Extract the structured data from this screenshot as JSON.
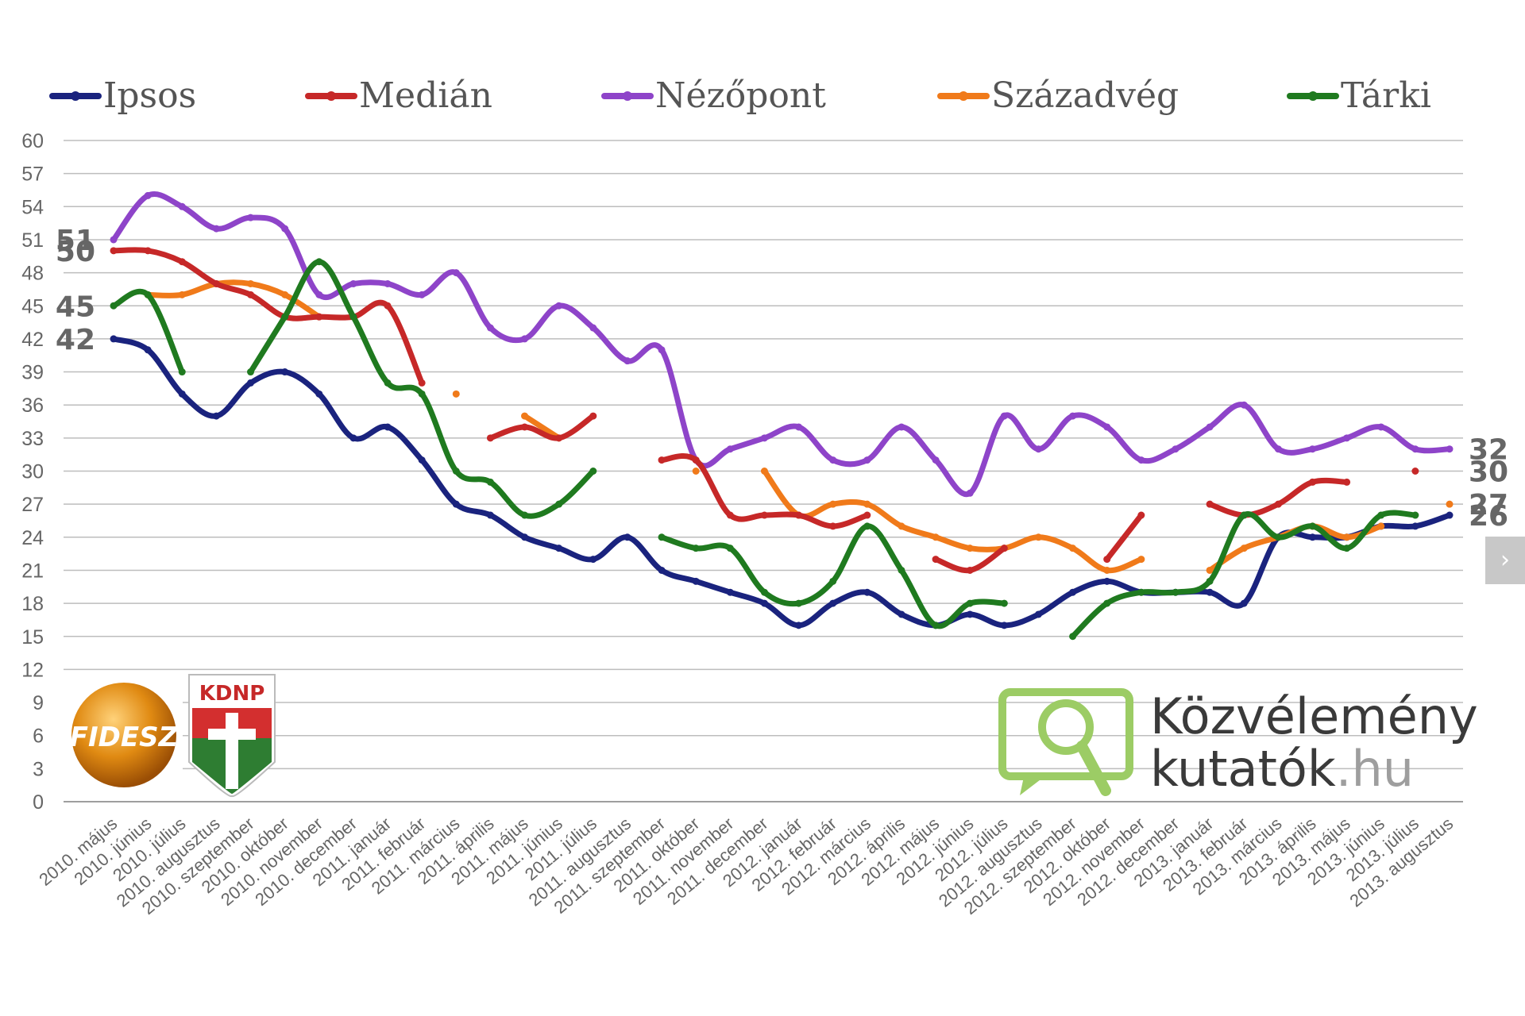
{
  "chart_data": {
    "type": "line",
    "title": "",
    "xlabel": "",
    "ylabel": "",
    "ylim": [
      0,
      60
    ],
    "yticks": [
      0,
      3,
      6,
      9,
      12,
      15,
      18,
      21,
      24,
      27,
      30,
      33,
      36,
      39,
      42,
      45,
      48,
      51,
      54,
      57,
      60
    ],
    "grid": "horizontal",
    "legend_position": "top",
    "categories": [
      "2010. május",
      "2010. június",
      "2010. július",
      "2010. augusztus",
      "2010. szeptember",
      "2010. október",
      "2010. november",
      "2010. december",
      "2011. január",
      "2011. február",
      "2011. március",
      "2011. április",
      "2011. május",
      "2011. június",
      "2011. július",
      "2011. augusztus",
      "2011. szeptember",
      "2011. október",
      "2011. november",
      "2011. december",
      "2012. január",
      "2012. február",
      "2012. március",
      "2012. április",
      "2012. május",
      "2012. június",
      "2012. július",
      "2012. augusztus",
      "2012. szeptember",
      "2012. október",
      "2012. november",
      "2012. december",
      "2013. január",
      "2013. február",
      "2013. március",
      "2013. április",
      "2013. május",
      "2013. június",
      "2013. július",
      "2013. augusztus"
    ],
    "series": [
      {
        "name": "Ipsos",
        "color": "#1a237e",
        "values": [
          42,
          41,
          37,
          35,
          38,
          39,
          37,
          33,
          34,
          31,
          27,
          26,
          24,
          23,
          22,
          24,
          21,
          20,
          19,
          18,
          16,
          18,
          19,
          17,
          16,
          17,
          16,
          17,
          19,
          20,
          19,
          19,
          19,
          18,
          24,
          24,
          24,
          25,
          25,
          26
        ]
      },
      {
        "name": "Medián",
        "color": "#c62828",
        "values": [
          50,
          50,
          49,
          47,
          46,
          44,
          44,
          44,
          45,
          38,
          null,
          33,
          34,
          33,
          35,
          null,
          31,
          31,
          26,
          26,
          26,
          25,
          26,
          null,
          22,
          21,
          23,
          null,
          null,
          22,
          26,
          null,
          27,
          26,
          27,
          29,
          29,
          null,
          30,
          null
        ]
      },
      {
        "name": "Nézőpont",
        "color": "#8e44c9",
        "values": [
          51,
          55,
          54,
          52,
          53,
          52,
          46,
          47,
          47,
          46,
          48,
          43,
          42,
          45,
          43,
          40,
          41,
          31,
          32,
          33,
          34,
          31,
          31,
          34,
          31,
          28,
          35,
          32,
          35,
          34,
          31,
          32,
          34,
          36,
          32,
          32,
          33,
          34,
          32,
          32
        ]
      },
      {
        "name": "Századvég",
        "color": "#f07a1a",
        "values": [
          null,
          46,
          46,
          47,
          47,
          46,
          44,
          null,
          null,
          null,
          37,
          null,
          35,
          33,
          null,
          null,
          null,
          30,
          null,
          30,
          26,
          27,
          27,
          25,
          24,
          23,
          23,
          24,
          23,
          21,
          22,
          null,
          21,
          23,
          24,
          25,
          24,
          25,
          null,
          27
        ]
      },
      {
        "name": "Tárki",
        "color": "#1f7a1f",
        "values": [
          45,
          46,
          39,
          null,
          39,
          44,
          49,
          44,
          38,
          37,
          30,
          29,
          26,
          27,
          30,
          null,
          24,
          23,
          23,
          19,
          18,
          20,
          25,
          21,
          16,
          18,
          18,
          null,
          15,
          18,
          19,
          19,
          20,
          26,
          24,
          25,
          23,
          26,
          26,
          null
        ]
      }
    ],
    "start_labels": [
      "51",
      "50",
      "45",
      "42"
    ],
    "end_labels": [
      "32",
      "30",
      "27",
      "26"
    ]
  },
  "logos": {
    "fidesz": "FIDESZ",
    "kdnp": "KDNP",
    "brand_line1": "Közvélemény",
    "brand_line2_main": "kutatók",
    "brand_line2_suffix": ".hu"
  },
  "nav": {
    "next_icon": "chevron-right-icon",
    "next_glyph": "›"
  }
}
